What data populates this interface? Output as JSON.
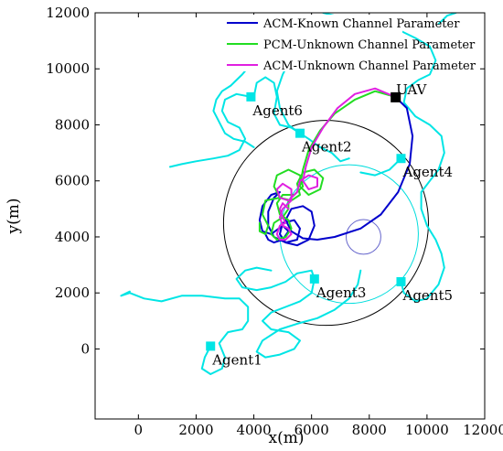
{
  "chart_data": {
    "type": "line",
    "xlabel": "x(m)",
    "ylabel": "y(m)",
    "xlim": [
      -1500,
      12000
    ],
    "ylim": [
      -2500,
      12000
    ],
    "xticks": [
      0,
      2000,
      4000,
      6000,
      8000,
      10000,
      12000
    ],
    "yticks": [
      0,
      2000,
      4000,
      6000,
      8000,
      10000,
      12000
    ],
    "xtick_labels": [
      "0",
      "2000",
      "4000",
      "6000",
      "8000",
      "10000",
      "12000"
    ],
    "ytick_labels": [
      "0",
      "2000",
      "4000",
      "6000",
      "8000",
      "10000",
      "12000"
    ],
    "grid": false,
    "legend_position": "top",
    "legend": [
      {
        "label": "ACM-Known Channel Parameter",
        "color": "#0000cc"
      },
      {
        "label": "PCM-Unknown Channel Parameter",
        "color": "#22dd22"
      },
      {
        "label": "ACM-Unknown Channel Parameter",
        "color": "#e020e0"
      }
    ],
    "uav": {
      "label": "UAV",
      "x": 8900,
      "y": 9000,
      "color": "#000000"
    },
    "agents": [
      {
        "label": "Agent1",
        "x": 2500,
        "y": 100
      },
      {
        "label": "Agent2",
        "x": 5600,
        "y": 7700
      },
      {
        "label": "Agent3",
        "x": 6100,
        "y": 2500
      },
      {
        "label": "Agent4",
        "x": 9100,
        "y": 6800
      },
      {
        "label": "Agent5",
        "x": 9100,
        "y": 2400
      },
      {
        "label": "Agent6",
        "x": 3900,
        "y": 9000
      }
    ],
    "circles": [
      {
        "cx": 6500,
        "cy": 4500,
        "r": 3550,
        "color": "#000000"
      },
      {
        "cx": 7300,
        "cy": 4100,
        "r": 2400,
        "color": "#00dddd"
      },
      {
        "cx": 7800,
        "cy": 4000,
        "r": 600,
        "color": "#6666cc"
      }
    ],
    "agent_paths": [
      {
        "color": "#00e5e5",
        "points": [
          [
            2500,
            100
          ],
          [
            2300,
            -300
          ],
          [
            2200,
            -700
          ],
          [
            2500,
            -900
          ],
          [
            2900,
            -700
          ],
          [
            3000,
            -300
          ],
          [
            2800,
            200
          ],
          [
            3100,
            600
          ],
          [
            3600,
            700
          ],
          [
            3800,
            1000
          ],
          [
            3800,
            1500
          ],
          [
            3500,
            1800
          ],
          [
            3000,
            1800
          ],
          [
            2200,
            1900
          ],
          [
            1500,
            1900
          ],
          [
            800,
            1700
          ],
          [
            200,
            1800
          ],
          [
            -300,
            2000
          ],
          [
            -600,
            1900
          ],
          [
            -300,
            2050
          ]
        ]
      },
      {
        "color": "#00e5e5",
        "points": [
          [
            4000,
            9000
          ],
          [
            4100,
            9500
          ],
          [
            4400,
            9700
          ],
          [
            4700,
            9500
          ],
          [
            4800,
            9000
          ],
          [
            4700,
            8400
          ],
          [
            4900,
            8000
          ],
          [
            5300,
            7900
          ],
          [
            5600,
            7700
          ],
          [
            5900,
            7500
          ],
          [
            6300,
            7200
          ],
          [
            6700,
            7000
          ],
          [
            7000,
            6700
          ],
          [
            7300,
            6800
          ]
        ]
      },
      {
        "color": "#00e5e5",
        "points": [
          [
            3900,
            9000
          ],
          [
            3400,
            9100
          ],
          [
            3000,
            8900
          ],
          [
            2900,
            8500
          ],
          [
            3100,
            8100
          ],
          [
            3500,
            7900
          ],
          [
            3700,
            7500
          ],
          [
            3500,
            7100
          ],
          [
            3100,
            6900
          ],
          [
            2600,
            6800
          ],
          [
            2000,
            6700
          ],
          [
            1500,
            6600
          ],
          [
            1100,
            6500
          ]
        ]
      },
      {
        "color": "#00e5e5",
        "points": [
          [
            5600,
            7700
          ],
          [
            5200,
            8000
          ],
          [
            4900,
            8600
          ],
          [
            4800,
            9200
          ],
          [
            5000,
            9800
          ],
          [
            5300,
            10400
          ],
          [
            5000,
            10800
          ],
          [
            4600,
            11000
          ],
          [
            4300,
            10700
          ],
          [
            4000,
            10300
          ],
          [
            3600,
            9800
          ],
          [
            3200,
            9400
          ],
          [
            2900,
            9200
          ],
          [
            2700,
            8900
          ],
          [
            2600,
            8500
          ],
          [
            2800,
            8100
          ],
          [
            3000,
            7700
          ],
          [
            3300,
            7500
          ],
          [
            3700,
            7400
          ],
          [
            4000,
            7200
          ]
        ]
      },
      {
        "color": "#00e5e5",
        "points": [
          [
            6100,
            2500
          ],
          [
            6000,
            2000
          ],
          [
            5600,
            1700
          ],
          [
            5100,
            1500
          ],
          [
            4600,
            1300
          ],
          [
            4300,
            1000
          ],
          [
            4600,
            700
          ],
          [
            5200,
            600
          ],
          [
            5600,
            300
          ],
          [
            5400,
            0
          ],
          [
            4900,
            -200
          ],
          [
            4400,
            -300
          ],
          [
            4100,
            -100
          ],
          [
            4300,
            300
          ],
          [
            4900,
            700
          ],
          [
            5500,
            900
          ],
          [
            6200,
            1100
          ],
          [
            6800,
            1400
          ],
          [
            7300,
            1800
          ],
          [
            7600,
            2300
          ],
          [
            7700,
            2800
          ]
        ]
      },
      {
        "color": "#00e5e5",
        "points": [
          [
            4600,
            2800
          ],
          [
            4100,
            2900
          ],
          [
            3700,
            2800
          ],
          [
            3400,
            2500
          ],
          [
            3600,
            2200
          ],
          [
            4100,
            2100
          ],
          [
            4600,
            2200
          ],
          [
            5100,
            2400
          ],
          [
            5500,
            2700
          ],
          [
            6000,
            2800
          ],
          [
            6100,
            2500
          ]
        ]
      },
      {
        "color": "#00e5e5",
        "points": [
          [
            9100,
            2400
          ],
          [
            9200,
            2000
          ],
          [
            9600,
            1700
          ],
          [
            10000,
            1800
          ],
          [
            10400,
            2300
          ],
          [
            10600,
            2900
          ],
          [
            10500,
            3400
          ],
          [
            10300,
            3900
          ],
          [
            10000,
            4400
          ],
          [
            9800,
            5000
          ],
          [
            9800,
            5600
          ],
          [
            10100,
            6000
          ],
          [
            10400,
            6400
          ],
          [
            10600,
            7000
          ],
          [
            10500,
            7600
          ],
          [
            10100,
            8000
          ],
          [
            9600,
            8300
          ],
          [
            9200,
            8800
          ],
          [
            9300,
            9300
          ],
          [
            9700,
            9600
          ],
          [
            10100,
            9800
          ],
          [
            10300,
            10300
          ],
          [
            10100,
            10800
          ],
          [
            9600,
            11100
          ],
          [
            9000,
            11400
          ],
          [
            8400,
            11500
          ],
          [
            7800,
            11600
          ],
          [
            7200,
            11700
          ],
          [
            6800,
            11900
          ],
          [
            6400,
            12000
          ]
        ]
      },
      {
        "color": "#00e5e5",
        "points": [
          [
            9100,
            6800
          ],
          [
            8700,
            6400
          ],
          [
            8200,
            6200
          ],
          [
            7700,
            6300
          ]
        ]
      },
      {
        "color": "#00e5e5",
        "points": [
          [
            10400,
            11600
          ],
          [
            10700,
            11900
          ],
          [
            11000,
            12000
          ]
        ]
      }
    ],
    "series": [
      {
        "name": "ACM-Known Channel Parameter",
        "color": "#0000cc",
        "points": [
          [
            8900,
            9000
          ],
          [
            9300,
            8600
          ],
          [
            9500,
            7600
          ],
          [
            9400,
            6600
          ],
          [
            9000,
            5600
          ],
          [
            8400,
            4800
          ],
          [
            7700,
            4300
          ],
          [
            6800,
            4000
          ],
          [
            6200,
            3900
          ],
          [
            5700,
            3950
          ],
          [
            5300,
            4200
          ],
          [
            5100,
            4600
          ],
          [
            5300,
            5000
          ],
          [
            5700,
            5100
          ],
          [
            6000,
            4900
          ],
          [
            6100,
            4400
          ],
          [
            5900,
            3900
          ],
          [
            5500,
            3700
          ],
          [
            5100,
            3800
          ],
          [
            4900,
            4100
          ],
          [
            5000,
            4500
          ],
          [
            5400,
            4600
          ],
          [
            5600,
            4300
          ],
          [
            5500,
            3900
          ],
          [
            5100,
            3800
          ],
          [
            4700,
            4000
          ],
          [
            4500,
            4400
          ],
          [
            4500,
            4900
          ],
          [
            4700,
            5400
          ],
          [
            4900,
            5600
          ],
          [
            4600,
            5500
          ],
          [
            4300,
            5100
          ],
          [
            4200,
            4600
          ],
          [
            4300,
            4200
          ],
          [
            4600,
            4100
          ],
          [
            5000,
            4400
          ],
          [
            5200,
            4200
          ],
          [
            5000,
            3900
          ],
          [
            4700,
            3800
          ],
          [
            4500,
            3900
          ],
          [
            4400,
            4100
          ]
        ]
      },
      {
        "name": "PCM-Unknown Channel Parameter",
        "color": "#22dd22",
        "points": [
          [
            8900,
            9000
          ],
          [
            8200,
            9200
          ],
          [
            7500,
            8900
          ],
          [
            6800,
            8400
          ],
          [
            6300,
            7800
          ],
          [
            5900,
            7100
          ],
          [
            5700,
            6400
          ],
          [
            5600,
            5800
          ],
          [
            5900,
            5500
          ],
          [
            6300,
            5700
          ],
          [
            6400,
            6100
          ],
          [
            6100,
            6400
          ],
          [
            5700,
            6300
          ],
          [
            5500,
            5900
          ],
          [
            5600,
            5500
          ],
          [
            5300,
            5300
          ],
          [
            4900,
            5400
          ],
          [
            4700,
            5800
          ],
          [
            4800,
            6200
          ],
          [
            5200,
            6400
          ],
          [
            5600,
            6200
          ],
          [
            5700,
            5800
          ],
          [
            5400,
            5500
          ],
          [
            5000,
            5500
          ],
          [
            4800,
            5200
          ],
          [
            4900,
            4800
          ],
          [
            5200,
            4600
          ],
          [
            5300,
            4300
          ],
          [
            5100,
            4000
          ],
          [
            4800,
            3900
          ],
          [
            4600,
            4100
          ],
          [
            4700,
            4500
          ],
          [
            5000,
            4700
          ],
          [
            5200,
            5000
          ],
          [
            5200,
            5300
          ],
          [
            4900,
            5400
          ],
          [
            4400,
            5300
          ],
          [
            4300,
            4800
          ],
          [
            4500,
            4400
          ],
          [
            4400,
            4100
          ],
          [
            4200,
            4200
          ],
          [
            4200,
            4500
          ]
        ]
      },
      {
        "name": "ACM-Unknown Channel Parameter",
        "color": "#e020e0",
        "points": [
          [
            8900,
            9000
          ],
          [
            8200,
            9300
          ],
          [
            7500,
            9100
          ],
          [
            6900,
            8600
          ],
          [
            6400,
            7900
          ],
          [
            6000,
            7200
          ],
          [
            5800,
            6500
          ],
          [
            5700,
            6000
          ],
          [
            5900,
            5700
          ],
          [
            6200,
            5800
          ],
          [
            6200,
            6100
          ],
          [
            5900,
            6200
          ],
          [
            5600,
            6000
          ],
          [
            5500,
            5600
          ],
          [
            5200,
            5300
          ],
          [
            4900,
            5400
          ],
          [
            4800,
            5700
          ],
          [
            5000,
            5900
          ],
          [
            5300,
            5700
          ],
          [
            5300,
            5300
          ],
          [
            5000,
            5000
          ],
          [
            4900,
            4700
          ],
          [
            5000,
            4400
          ],
          [
            5200,
            4300
          ],
          [
            5300,
            4100
          ],
          [
            5100,
            3900
          ],
          [
            4900,
            3900
          ],
          [
            4800,
            4100
          ],
          [
            4900,
            4400
          ],
          [
            5100,
            4500
          ],
          [
            5000,
            4700
          ],
          [
            4900,
            5000
          ],
          [
            5000,
            5200
          ],
          [
            5200,
            5000
          ]
        ]
      }
    ]
  }
}
